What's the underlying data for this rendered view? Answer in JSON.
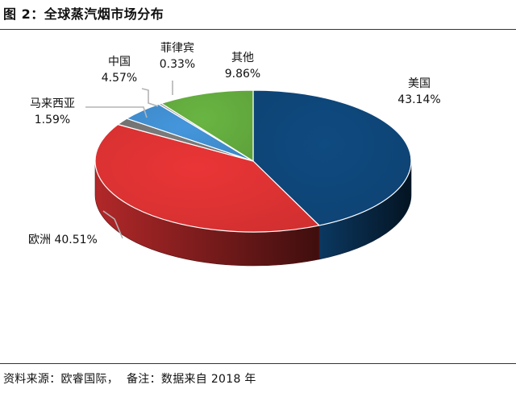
{
  "figure": {
    "title": "图 2：全球蒸汽烟市场分布",
    "source_label": "资料来源：欧睿国际，",
    "note": "备注：数据来自 2018 年"
  },
  "chart_data": {
    "type": "pie",
    "title": "",
    "three_d": true,
    "legend": "none",
    "slices": [
      {
        "label": "美国",
        "value": 43.14,
        "value_label": "43.14%",
        "color": "#0d4272"
      },
      {
        "label": "欧洲",
        "value": 40.51,
        "value_label": "40.51%",
        "color": "#d12f30"
      },
      {
        "label": "马来西亚",
        "value": 1.59,
        "value_label": "1.59%",
        "color": "#6f6f6f"
      },
      {
        "label": "中国",
        "value": 4.57,
        "value_label": "4.57%",
        "color": "#3d86c4"
      },
      {
        "label": "菲律宾",
        "value": 0.33,
        "value_label": "0.33%",
        "color": "#9a9a9a"
      },
      {
        "label": "其他",
        "value": 9.86,
        "value_label": "9.86%",
        "color": "#5ea23b"
      }
    ]
  }
}
